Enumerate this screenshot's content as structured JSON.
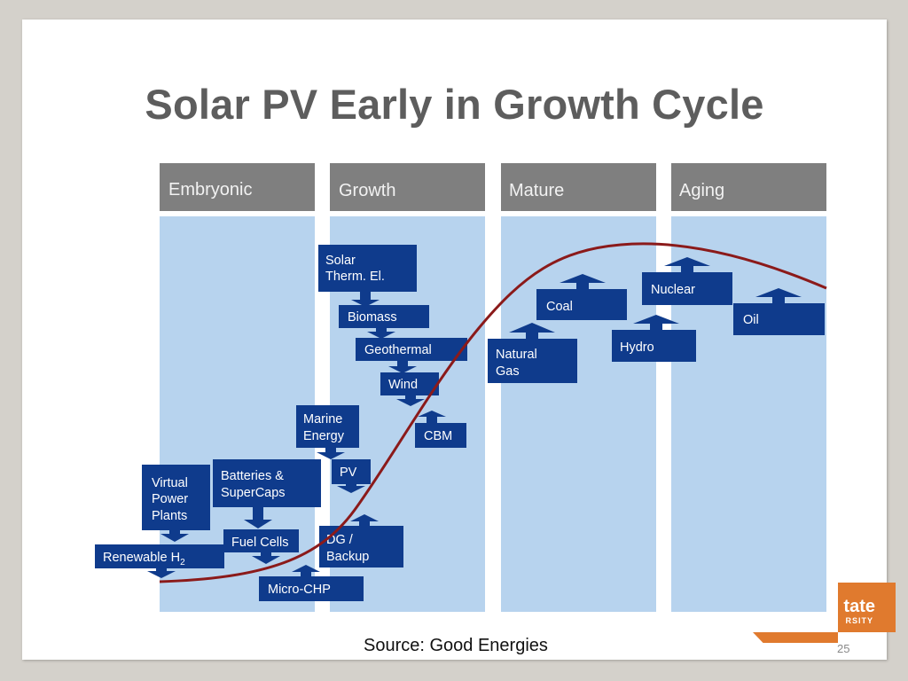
{
  "title": "Solar PV Early in Growth Cycle",
  "stages": [
    "Embryonic",
    "Growth",
    "Mature",
    "Aging"
  ],
  "technologies": {
    "solar_therm": [
      "Solar",
      "Therm. El."
    ],
    "biomass": "Biomass",
    "geothermal": "Geothermal",
    "wind": "Wind",
    "cbm": "CBM",
    "marine": [
      "Marine",
      "Energy"
    ],
    "pv": "PV",
    "virtual_power": [
      "Virtual",
      "Power",
      "Plants"
    ],
    "batteries": [
      "Batteries &",
      "SuperCaps"
    ],
    "fuel_cells": "Fuel Cells",
    "renewable_h2": "Renewable H",
    "renewable_h2_sub": "2",
    "dg_backup": [
      "DG /",
      "Backup"
    ],
    "micro_chp": "Micro-CHP",
    "natural_gas": [
      "Natural",
      "Gas"
    ],
    "coal": "Coal",
    "hydro": "Hydro",
    "nuclear": "Nuclear",
    "oil": "Oil"
  },
  "colors": {
    "box": "#0f3b8c",
    "curve": "#8b1a1a",
    "stage_body": "#b7d3ee",
    "stage_header": "#7f7f7f"
  },
  "source": "Source:  Good Energies",
  "page_number": "25",
  "logo": {
    "text": "tate",
    "subtext": "RSITY"
  }
}
